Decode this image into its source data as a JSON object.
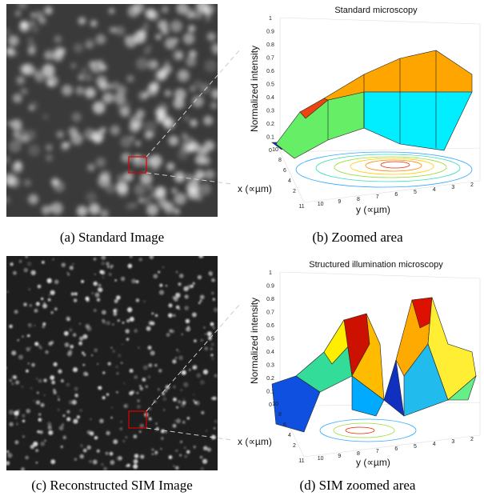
{
  "panels": [
    {
      "caption": "(a) Standard Image"
    },
    {
      "caption": "(b) Zoomed area",
      "title": "Standard microscopy",
      "z_label": "Normalized intensity",
      "x_label": "x (∝µm)",
      "y_label": "y (∝µm)",
      "z_ticks": [
        "0",
        "0.1",
        "0.2",
        "0.3",
        "0.4",
        "0.5",
        "0.6",
        "0.7",
        "0.8",
        "0.9",
        "1"
      ],
      "x_ticks": [
        "10",
        "8",
        "6",
        "4",
        "2"
      ],
      "y_ticks": [
        "11",
        "10",
        "9",
        "8",
        "7",
        "6",
        "5",
        "4",
        "3",
        "2"
      ]
    },
    {
      "caption": "(c) Reconstructed SIM Image"
    },
    {
      "caption": "(d) SIM zoomed area",
      "title": "Structured illumination microscopy",
      "z_label": "Normalized intensity",
      "x_label": "x (∝µm)",
      "y_label": "y (∝µm)",
      "z_ticks": [
        "0",
        "0.1",
        "0.2",
        "0.3",
        "0.4",
        "0.5",
        "0.6",
        "0.7",
        "0.8",
        "0.9",
        "1"
      ],
      "x_ticks": [
        "10",
        "8",
        "6",
        "4",
        "2"
      ],
      "y_ticks": [
        "11",
        "10",
        "9",
        "8",
        "7",
        "6",
        "5",
        "4",
        "3",
        "2"
      ]
    }
  ]
}
